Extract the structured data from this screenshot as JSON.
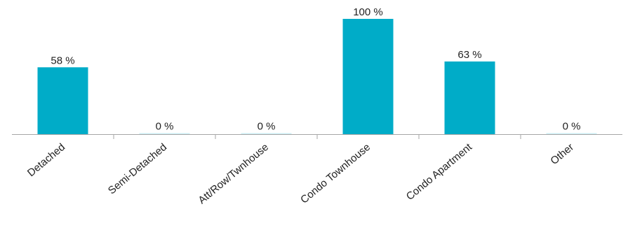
{
  "chart_data": {
    "type": "bar",
    "title": "",
    "xlabel": "",
    "ylabel": "",
    "categories": [
      "Detached",
      "Semi-Detached",
      "Att/Row/Twnhouse",
      "Condo Townhouse",
      "Condo Apartment",
      "Other"
    ],
    "values": [
      58,
      0,
      0,
      100,
      63,
      0
    ],
    "data_labels": [
      "58 %",
      "0 %",
      "0 %",
      "100 %",
      "63 %",
      "0 %"
    ],
    "ylim": [
      0,
      100
    ],
    "grid": false,
    "legend": "none",
    "colors": {
      "bar": "#00ACC8",
      "axis": "#A6A6A6",
      "text": "#222222"
    }
  }
}
